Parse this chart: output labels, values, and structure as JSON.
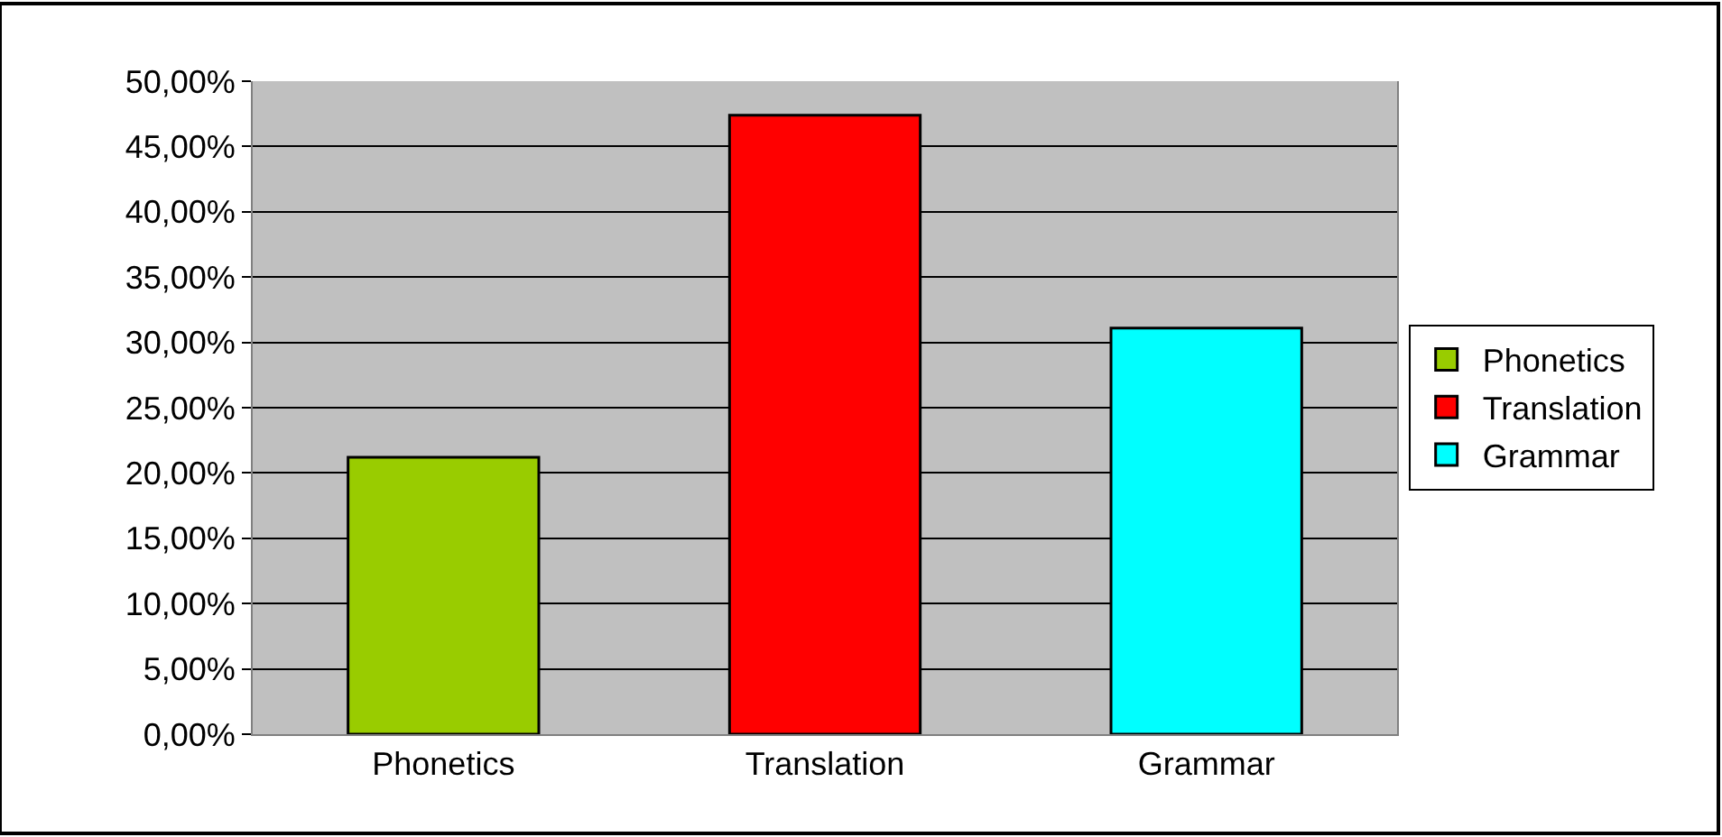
{
  "chart_data": {
    "type": "bar",
    "categories": [
      "Phonetics",
      "Translation",
      "Grammar"
    ],
    "series": [
      {
        "name": "Phonetics",
        "color": "#99cc00",
        "values": [
          21.2,
          null,
          null
        ]
      },
      {
        "name": "Translation",
        "color": "#ff0000",
        "values": [
          null,
          47.4,
          null
        ]
      },
      {
        "name": "Grammar",
        "color": "#00ffff",
        "values": [
          null,
          null,
          31.1
        ]
      }
    ],
    "ylim": [
      0,
      50
    ],
    "yticks": [
      {
        "value": 0,
        "label": "0,00%"
      },
      {
        "value": 5,
        "label": "5,00%"
      },
      {
        "value": 10,
        "label": "10,00%"
      },
      {
        "value": 15,
        "label": "15,00%"
      },
      {
        "value": 20,
        "label": "20,00%"
      },
      {
        "value": 25,
        "label": "25,00%"
      },
      {
        "value": 30,
        "label": "30,00%"
      },
      {
        "value": 35,
        "label": "35,00%"
      },
      {
        "value": 40,
        "label": "40,00%"
      },
      {
        "value": 45,
        "label": "45,00%"
      },
      {
        "value": 50,
        "label": "50,00%"
      }
    ],
    "grid": "y",
    "legend": "right"
  }
}
